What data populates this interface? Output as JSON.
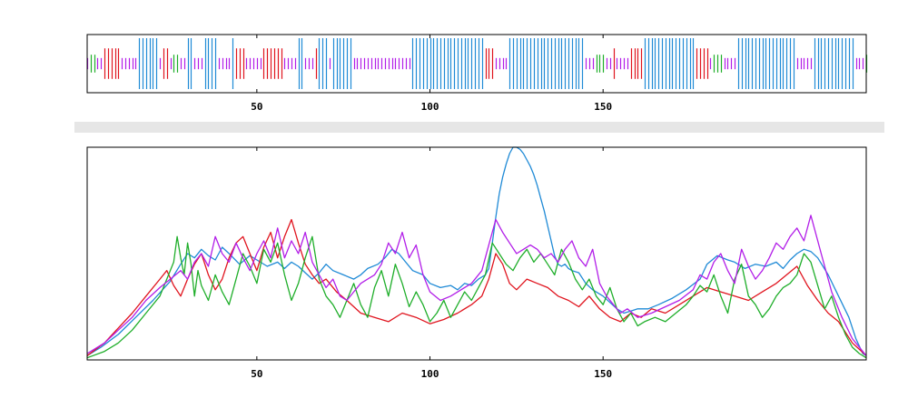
{
  "colors": {
    "blue": "#1f8ad6",
    "red": "#e0141e",
    "green": "#1fae2a",
    "magenta": "#b21ee8",
    "frame": "#000000",
    "band": "#e6e6e6"
  },
  "chart_data": [
    {
      "type": "bar",
      "title": "",
      "xlabel": "",
      "ylabel": "",
      "xlim": [
        1,
        226
      ],
      "xticks": [
        "50",
        "100",
        "150"
      ],
      "tick_values": [
        50,
        100,
        150
      ],
      "height_levels": {
        "blue": 1.0,
        "red": 0.6,
        "green": 0.35,
        "magenta": 0.22
      },
      "segments": [
        [
          "magenta",
          1,
          1
        ],
        [
          "green",
          2,
          3
        ],
        [
          "magenta",
          4,
          5
        ],
        [
          "red",
          6,
          10
        ],
        [
          "magenta",
          11,
          15
        ],
        [
          "blue",
          16,
          21
        ],
        [
          "magenta",
          22,
          22
        ],
        [
          "red",
          23,
          24
        ],
        [
          "magenta",
          25,
          25
        ],
        [
          "green",
          26,
          27
        ],
        [
          "magenta",
          28,
          29
        ],
        [
          "blue",
          30,
          31
        ],
        [
          "magenta",
          32,
          34
        ],
        [
          "blue",
          35,
          38
        ],
        [
          "magenta",
          39,
          42
        ],
        [
          "blue",
          43,
          43
        ],
        [
          "red",
          44,
          46
        ],
        [
          "magenta",
          47,
          51
        ],
        [
          "red",
          52,
          57
        ],
        [
          "magenta",
          58,
          61
        ],
        [
          "blue",
          62,
          63
        ],
        [
          "magenta",
          64,
          66
        ],
        [
          "red",
          67,
          67
        ],
        [
          "blue",
          68,
          70
        ],
        [
          "magenta",
          71,
          71
        ],
        [
          "blue",
          72,
          77
        ],
        [
          "magenta",
          78,
          79
        ],
        [
          "magenta",
          80,
          94
        ],
        [
          "blue",
          95,
          115
        ],
        [
          "red",
          116,
          118
        ],
        [
          "magenta",
          119,
          122
        ],
        [
          "blue",
          123,
          144
        ],
        [
          "magenta",
          145,
          147
        ],
        [
          "green",
          148,
          150
        ],
        [
          "magenta",
          151,
          152
        ],
        [
          "red",
          153,
          153
        ],
        [
          "magenta",
          154,
          157
        ],
        [
          "red",
          158,
          161
        ],
        [
          "blue",
          162,
          176
        ],
        [
          "red",
          177,
          180
        ],
        [
          "magenta",
          181,
          181
        ],
        [
          "green",
          182,
          184
        ],
        [
          "magenta",
          185,
          188
        ],
        [
          "blue",
          189,
          205
        ],
        [
          "magenta",
          206,
          210
        ],
        [
          "blue",
          211,
          222
        ],
        [
          "magenta",
          223,
          225
        ],
        [
          "green",
          226,
          226
        ]
      ]
    },
    {
      "type": "line",
      "title": "",
      "xlabel": "",
      "ylabel": "",
      "xlim": [
        1,
        226
      ],
      "ylim": [
        0,
        1
      ],
      "xticks": [
        "50",
        "100",
        "150"
      ],
      "tick_values": [
        50,
        100,
        150
      ],
      "series": [
        {
          "color": "blue",
          "x": [
            1,
            5,
            10,
            15,
            20,
            25,
            28,
            30,
            32,
            34,
            36,
            38,
            40,
            42,
            45,
            48,
            50,
            53,
            56,
            58,
            60,
            62,
            64,
            66,
            68,
            70,
            72,
            75,
            78,
            80,
            82,
            85,
            87,
            89,
            91,
            93,
            95,
            98,
            100,
            103,
            106,
            108,
            110,
            112,
            114,
            116,
            117,
            118,
            119,
            120,
            121,
            122,
            123,
            124,
            125,
            126,
            127,
            128,
            129,
            130,
            131,
            132,
            133,
            134,
            135,
            136,
            137,
            138,
            139,
            140,
            141,
            143,
            145,
            147,
            150,
            152,
            154,
            156,
            158,
            160,
            163,
            166,
            170,
            174,
            178,
            180,
            183,
            186,
            188,
            191,
            194,
            197,
            200,
            202,
            204,
            206,
            208,
            210,
            212,
            215,
            218,
            221,
            223,
            225,
            226
          ],
          "y": [
            0.02,
            0.06,
            0.12,
            0.2,
            0.28,
            0.37,
            0.45,
            0.5,
            0.48,
            0.52,
            0.49,
            0.47,
            0.53,
            0.5,
            0.45,
            0.49,
            0.47,
            0.44,
            0.46,
            0.43,
            0.46,
            0.44,
            0.41,
            0.38,
            0.41,
            0.45,
            0.42,
            0.4,
            0.38,
            0.4,
            0.43,
            0.45,
            0.48,
            0.52,
            0.5,
            0.46,
            0.42,
            0.4,
            0.36,
            0.34,
            0.35,
            0.33,
            0.36,
            0.35,
            0.38,
            0.4,
            0.43,
            0.55,
            0.67,
            0.78,
            0.86,
            0.92,
            0.97,
            1.0,
            1.0,
            0.99,
            0.97,
            0.94,
            0.91,
            0.87,
            0.82,
            0.76,
            0.7,
            0.63,
            0.56,
            0.49,
            0.45,
            0.44,
            0.45,
            0.43,
            0.42,
            0.41,
            0.36,
            0.33,
            0.3,
            0.27,
            0.24,
            0.22,
            0.23,
            0.24,
            0.24,
            0.26,
            0.29,
            0.33,
            0.38,
            0.45,
            0.49,
            0.47,
            0.46,
            0.43,
            0.45,
            0.44,
            0.46,
            0.43,
            0.47,
            0.5,
            0.52,
            0.51,
            0.48,
            0.4,
            0.3,
            0.2,
            0.1,
            0.03,
            0.02
          ]
        },
        {
          "color": "red",
          "x": [
            1,
            6,
            10,
            14,
            18,
            22,
            24,
            26,
            28,
            30,
            32,
            34,
            36,
            38,
            40,
            42,
            44,
            46,
            48,
            50,
            52,
            54,
            56,
            58,
            60,
            62,
            64,
            66,
            68,
            70,
            73,
            76,
            80,
            84,
            88,
            92,
            96,
            100,
            104,
            108,
            112,
            115,
            117,
            119,
            121,
            123,
            125,
            128,
            131,
            134,
            137,
            140,
            143,
            146,
            149,
            152,
            155,
            158,
            161,
            164,
            168,
            172,
            176,
            180,
            184,
            188,
            192,
            196,
            200,
            203,
            206,
            209,
            212,
            215,
            218,
            222,
            226
          ],
          "y": [
            0.02,
            0.08,
            0.15,
            0.22,
            0.3,
            0.38,
            0.42,
            0.35,
            0.3,
            0.38,
            0.45,
            0.5,
            0.4,
            0.33,
            0.38,
            0.48,
            0.55,
            0.58,
            0.5,
            0.42,
            0.53,
            0.6,
            0.48,
            0.58,
            0.66,
            0.55,
            0.45,
            0.4,
            0.36,
            0.38,
            0.32,
            0.28,
            0.22,
            0.2,
            0.18,
            0.22,
            0.2,
            0.17,
            0.19,
            0.22,
            0.26,
            0.3,
            0.38,
            0.5,
            0.45,
            0.36,
            0.33,
            0.38,
            0.36,
            0.34,
            0.3,
            0.28,
            0.25,
            0.3,
            0.24,
            0.2,
            0.18,
            0.22,
            0.2,
            0.24,
            0.22,
            0.26,
            0.3,
            0.34,
            0.32,
            0.3,
            0.28,
            0.32,
            0.36,
            0.4,
            0.44,
            0.35,
            0.28,
            0.22,
            0.18,
            0.08,
            0.02
          ]
        },
        {
          "color": "green",
          "x": [
            1,
            6,
            10,
            14,
            18,
            22,
            24,
            26,
            27,
            28,
            29,
            30,
            31,
            32,
            33,
            34,
            36,
            38,
            40,
            42,
            44,
            46,
            48,
            50,
            52,
            54,
            56,
            58,
            60,
            62,
            64,
            66,
            68,
            70,
            72,
            74,
            76,
            78,
            80,
            82,
            84,
            86,
            88,
            90,
            92,
            94,
            96,
            98,
            100,
            102,
            104,
            106,
            108,
            110,
            112,
            114,
            116,
            118,
            120,
            122,
            124,
            126,
            128,
            130,
            132,
            134,
            136,
            138,
            140,
            142,
            144,
            146,
            148,
            150,
            152,
            154,
            156,
            158,
            160,
            162,
            165,
            168,
            171,
            174,
            176,
            178,
            180,
            182,
            184,
            186,
            188,
            190,
            192,
            194,
            196,
            198,
            200,
            202,
            204,
            206,
            208,
            210,
            212,
            214,
            216,
            218,
            220,
            222,
            224,
            226
          ],
          "y": [
            0.01,
            0.04,
            0.08,
            0.14,
            0.22,
            0.3,
            0.38,
            0.46,
            0.58,
            0.48,
            0.4,
            0.55,
            0.45,
            0.3,
            0.42,
            0.35,
            0.28,
            0.4,
            0.32,
            0.26,
            0.38,
            0.5,
            0.44,
            0.36,
            0.52,
            0.46,
            0.55,
            0.4,
            0.28,
            0.36,
            0.48,
            0.58,
            0.38,
            0.3,
            0.26,
            0.2,
            0.28,
            0.36,
            0.26,
            0.2,
            0.34,
            0.42,
            0.3,
            0.45,
            0.36,
            0.25,
            0.32,
            0.26,
            0.18,
            0.22,
            0.28,
            0.2,
            0.26,
            0.32,
            0.28,
            0.34,
            0.4,
            0.55,
            0.5,
            0.45,
            0.42,
            0.48,
            0.52,
            0.46,
            0.5,
            0.45,
            0.4,
            0.52,
            0.46,
            0.38,
            0.33,
            0.38,
            0.3,
            0.26,
            0.34,
            0.24,
            0.18,
            0.22,
            0.16,
            0.18,
            0.2,
            0.18,
            0.22,
            0.26,
            0.3,
            0.35,
            0.32,
            0.4,
            0.3,
            0.22,
            0.38,
            0.45,
            0.3,
            0.26,
            0.2,
            0.24,
            0.3,
            0.34,
            0.36,
            0.4,
            0.5,
            0.46,
            0.35,
            0.24,
            0.3,
            0.2,
            0.12,
            0.06,
            0.03,
            0.01
          ]
        },
        {
          "color": "magenta",
          "x": [
            1,
            6,
            10,
            14,
            18,
            22,
            25,
            28,
            30,
            32,
            34,
            36,
            38,
            40,
            42,
            44,
            46,
            48,
            50,
            52,
            54,
            56,
            58,
            60,
            62,
            64,
            66,
            68,
            70,
            72,
            74,
            76,
            78,
            80,
            82,
            84,
            86,
            88,
            90,
            92,
            94,
            96,
            98,
            100,
            103,
            106,
            109,
            112,
            115,
            117,
            119,
            121,
            123,
            125,
            127,
            129,
            131,
            133,
            135,
            137,
            139,
            141,
            143,
            145,
            147,
            149,
            151,
            153,
            155,
            157,
            160,
            164,
            168,
            172,
            176,
            178,
            180,
            182,
            184,
            186,
            188,
            190,
            192,
            194,
            196,
            198,
            200,
            202,
            204,
            206,
            208,
            210,
            213,
            216,
            219,
            222,
            226
          ],
          "y": [
            0.03,
            0.08,
            0.14,
            0.2,
            0.28,
            0.34,
            0.38,
            0.42,
            0.38,
            0.46,
            0.5,
            0.44,
            0.58,
            0.5,
            0.46,
            0.55,
            0.48,
            0.42,
            0.5,
            0.56,
            0.48,
            0.62,
            0.48,
            0.56,
            0.5,
            0.6,
            0.46,
            0.4,
            0.34,
            0.38,
            0.3,
            0.28,
            0.32,
            0.36,
            0.38,
            0.4,
            0.45,
            0.55,
            0.5,
            0.6,
            0.48,
            0.54,
            0.4,
            0.32,
            0.28,
            0.3,
            0.33,
            0.36,
            0.42,
            0.54,
            0.66,
            0.6,
            0.55,
            0.5,
            0.52,
            0.54,
            0.52,
            0.48,
            0.5,
            0.46,
            0.52,
            0.56,
            0.48,
            0.44,
            0.52,
            0.36,
            0.3,
            0.26,
            0.22,
            0.24,
            0.2,
            0.22,
            0.25,
            0.28,
            0.33,
            0.4,
            0.38,
            0.46,
            0.5,
            0.42,
            0.36,
            0.52,
            0.44,
            0.38,
            0.42,
            0.48,
            0.55,
            0.52,
            0.58,
            0.62,
            0.56,
            0.68,
            0.5,
            0.32,
            0.2,
            0.1,
            0.02
          ]
        }
      ]
    }
  ]
}
